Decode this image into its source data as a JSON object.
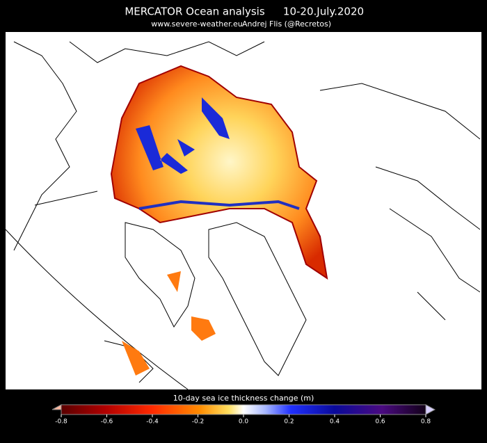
{
  "header": {
    "title": "MERCATOR Ocean analysis",
    "date": "10-20.July.2020",
    "website": "www.severe-weather.eu",
    "author": "Andrej Flis (@Recretos)"
  },
  "colorbar": {
    "label": "10-day sea ice thickness change (m)",
    "range": [
      -0.8,
      0.8
    ],
    "ticks": [
      -0.8,
      -0.6,
      -0.4,
      -0.2,
      {
        "value": 0,
        "label": "0.0"
      },
      0.2,
      0.4,
      0.6,
      0.8
    ]
  }
}
